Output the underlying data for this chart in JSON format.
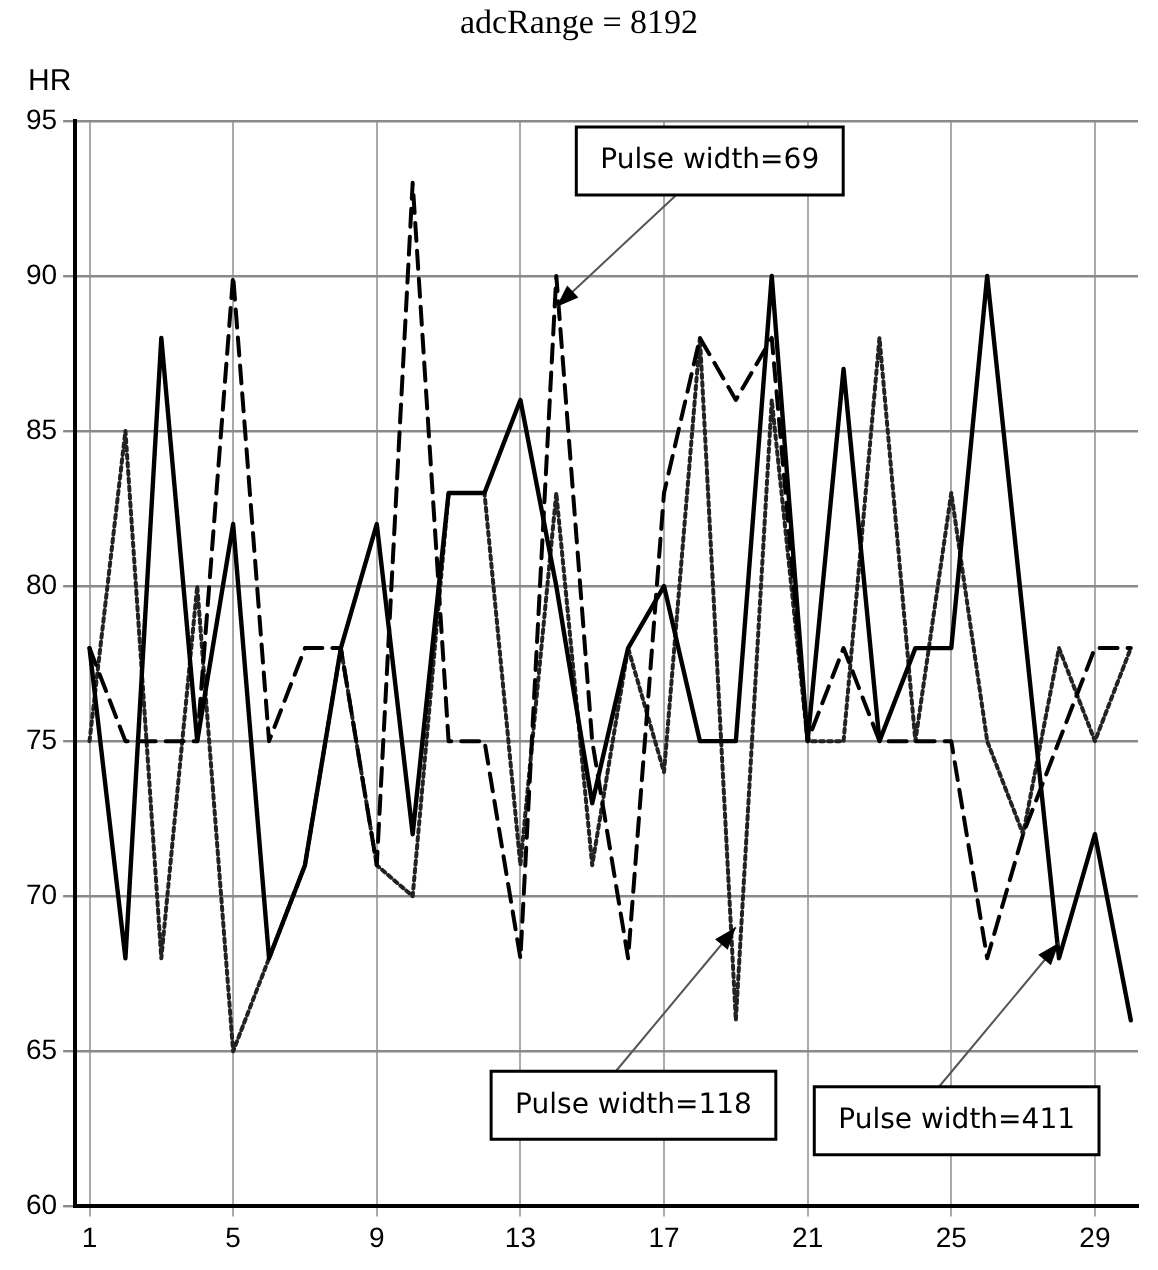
{
  "chart_data": {
    "type": "line",
    "title": "adcRange = 8192",
    "ylabel": "HR",
    "x": [
      1,
      2,
      3,
      4,
      5,
      6,
      7,
      8,
      9,
      10,
      11,
      12,
      13,
      14,
      15,
      16,
      17,
      18,
      19,
      20,
      21,
      22,
      23,
      24,
      25,
      26,
      27,
      28,
      29,
      30
    ],
    "series": [
      {
        "color": "#000000",
        "line_style": "solid",
        "values": [
          78,
          68,
          88,
          75,
          82,
          68,
          71,
          78,
          82,
          72,
          83,
          83,
          86,
          80,
          73,
          78,
          80,
          75,
          75,
          90,
          75,
          87,
          75,
          78,
          78,
          90,
          79,
          68,
          72,
          66
        ]
      },
      {
        "color": "#000000",
        "line_style": "dashed",
        "values": [
          78,
          75,
          75,
          75,
          90,
          75,
          78,
          78,
          71,
          93,
          75,
          75,
          68,
          90,
          75,
          68,
          83,
          88,
          86,
          88,
          75,
          78,
          75,
          75,
          75,
          68,
          72,
          75,
          78,
          78
        ]
      },
      {
        "color": "#222222",
        "line_style": "dotted",
        "values": [
          75,
          85,
          68,
          80,
          65,
          68,
          71,
          78,
          71,
          70,
          83,
          83,
          71,
          83,
          71,
          78,
          74,
          88,
          66,
          86,
          75,
          75,
          88,
          75,
          83,
          75,
          72,
          78,
          75,
          78
        ]
      }
    ],
    "xlim": [
      0.6,
      30.2
    ],
    "xticks": [
      1,
      5,
      9,
      13,
      17,
      21,
      25,
      29
    ],
    "ylim": [
      60,
      95
    ],
    "yticks": [
      60,
      65,
      70,
      75,
      80,
      85,
      90,
      95
    ],
    "grid": true,
    "legend": false,
    "marker": "none",
    "annotations": [
      {
        "text": "Pulse width=69",
        "x": 14,
        "y": 89
      },
      {
        "text": "Pulse width=118",
        "x": 19,
        "y": 69
      },
      {
        "text": "Pulse width=411",
        "x": 28,
        "y": 68.5
      }
    ]
  }
}
